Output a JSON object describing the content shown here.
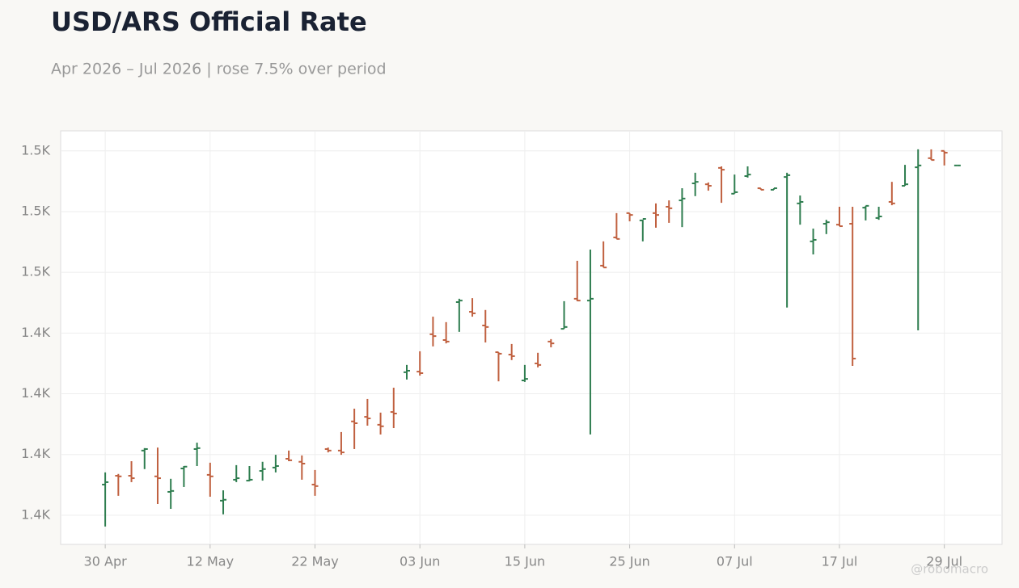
{
  "chart_data": {
    "type": "ohlc",
    "title": "USD/ARS Official Rate",
    "subtitle": "Apr 2026 – Jul 2026 | rose 7.5% over period",
    "categories": [
      "30 Apr",
      null,
      null,
      null,
      null,
      null,
      null,
      null,
      "12 May",
      null,
      null,
      null,
      null,
      null,
      null,
      null,
      "22 May",
      null,
      null,
      null,
      null,
      null,
      null,
      null,
      "03 Jun",
      null,
      null,
      null,
      null,
      null,
      null,
      null,
      "15 Jun",
      null,
      null,
      null,
      null,
      null,
      null,
      null,
      "25 Jun",
      null,
      null,
      null,
      null,
      null,
      null,
      null,
      "07 Jul",
      null,
      null,
      null,
      null,
      null,
      null,
      null,
      "17 Jul",
      null,
      null,
      null,
      null,
      null,
      null,
      null,
      "29 Jul",
      null
    ],
    "open": [
      1390.1,
      1393.0,
      1393.0,
      1401.3,
      1392.8,
      1387.7,
      1395.4,
      1401.8,
      1393.3,
      1384.8,
      1391.7,
      1391.4,
      1394.6,
      1395.7,
      1398.6,
      1397.6,
      1390.1,
      1401.8,
      1401.3,
      1410.9,
      1412.4,
      1409.8,
      1414.0,
      1427.1,
      1427.3,
      1439.6,
      1437.7,
      1450.2,
      1447.0,
      1442.5,
      1433.7,
      1432.9,
      1424.4,
      1430.0,
      1437.2,
      1441.4,
      1451.3,
      1450.7,
      1462.2,
      1471.5,
      1479.5,
      1477.1,
      1479.5,
      1481.6,
      1483.7,
      1489.3,
      1489.0,
      1494.4,
      1485.9,
      1491.7,
      1487.7,
      1487.2,
      1491.4,
      1482.7,
      1470.2,
      1476.0,
      1475.7,
      1476.0,
      1481.3,
      1477.9,
      1483.2,
      1488.5,
      1494.6,
      1497.6,
      1500.0,
      1495.2
    ],
    "high": [
      1394.1,
      1393.6,
      1397.8,
      1402.1,
      1402.3,
      1392.0,
      1396.2,
      1403.9,
      1397.3,
      1388.2,
      1396.5,
      1396.2,
      1397.6,
      1399.9,
      1401.3,
      1399.7,
      1394.9,
      1402.3,
      1407.4,
      1415.1,
      1418.3,
      1413.8,
      1422.0,
      1429.5,
      1434.0,
      1445.4,
      1443.6,
      1451.3,
      1451.5,
      1447.6,
      1433.7,
      1436.4,
      1429.5,
      1433.5,
      1438.0,
      1450.5,
      1463.8,
      1467.5,
      1470.2,
      1479.5,
      1479.5,
      1477.3,
      1482.7,
      1483.7,
      1487.7,
      1492.8,
      1489.6,
      1494.9,
      1492.2,
      1494.9,
      1487.7,
      1487.7,
      1492.8,
      1485.3,
      1474.4,
      1477.3,
      1481.6,
      1481.6,
      1481.9,
      1481.6,
      1489.8,
      1495.4,
      1500.5,
      1500.5,
      1500.0,
      1495.2
    ],
    "low": [
      1376.3,
      1386.4,
      1390.9,
      1395.2,
      1383.7,
      1382.1,
      1389.3,
      1396.2,
      1386.1,
      1380.3,
      1390.9,
      1391.2,
      1391.4,
      1394.1,
      1397.8,
      1391.7,
      1386.4,
      1400.7,
      1399.9,
      1401.8,
      1409.5,
      1406.6,
      1408.7,
      1424.7,
      1426.0,
      1435.6,
      1436.6,
      1440.4,
      1445.4,
      1436.9,
      1424.1,
      1431.1,
      1423.9,
      1428.7,
      1435.3,
      1441.4,
      1450.5,
      1406.6,
      1461.6,
      1471.0,
      1476.8,
      1470.2,
      1474.7,
      1476.3,
      1474.9,
      1485.1,
      1486.9,
      1482.9,
      1485.9,
      1491.2,
      1487.2,
      1487.2,
      1448.4,
      1475.7,
      1465.9,
      1472.6,
      1475.2,
      1429.2,
      1477.1,
      1477.3,
      1482.1,
      1488.5,
      1440.9,
      1497.0,
      1495.2,
      1495.2
    ],
    "close": [
      1390.9,
      1392.8,
      1392.2,
      1401.8,
      1392.2,
      1388.0,
      1396.0,
      1402.1,
      1392.8,
      1385.1,
      1392.2,
      1391.7,
      1395.2,
      1396.2,
      1398.1,
      1397.0,
      1389.6,
      1401.3,
      1400.7,
      1410.3,
      1411.9,
      1409.3,
      1413.5,
      1427.6,
      1426.8,
      1439.0,
      1437.2,
      1450.7,
      1446.5,
      1442.0,
      1433.2,
      1432.4,
      1424.9,
      1429.5,
      1436.6,
      1442.0,
      1450.7,
      1451.3,
      1461.6,
      1471.0,
      1478.9,
      1477.6,
      1478.9,
      1481.1,
      1484.3,
      1489.8,
      1488.5,
      1493.8,
      1486.4,
      1492.2,
      1487.2,
      1487.7,
      1492.0,
      1483.2,
      1470.7,
      1476.5,
      1475.2,
      1431.6,
      1481.9,
      1478.4,
      1482.7,
      1489.0,
      1495.2,
      1497.0,
      1499.4,
      1495.2
    ],
    "up_color": "#2e7d4f",
    "down_color": "#c0603f",
    "ylim": [
      1370.4,
      1506.6
    ],
    "yticks": [
      {
        "value": 1380,
        "label": "1.4K"
      },
      {
        "value": 1400,
        "label": "1.4K"
      },
      {
        "value": 1420,
        "label": "1.4K"
      },
      {
        "value": 1440,
        "label": "1.4K"
      },
      {
        "value": 1460,
        "label": "1.5K"
      },
      {
        "value": 1480,
        "label": "1.5K"
      },
      {
        "value": 1500,
        "label": "1.5K"
      }
    ],
    "grid": true
  },
  "watermark": "@robomacro"
}
